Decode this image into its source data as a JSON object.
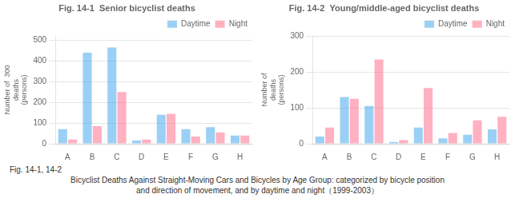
{
  "chart_data": [
    {
      "type": "bar",
      "title": "Fig. 14-1  Senior bicyclist deaths",
      "ylabel": "Number of  300\n    deaths\n  (persons)",
      "categories": [
        "A",
        "B",
        "C",
        "D",
        "E",
        "F",
        "G",
        "H"
      ],
      "series": [
        {
          "name": "Daytime",
          "values": [
            70,
            440,
            465,
            15,
            140,
            70,
            80,
            40
          ]
        },
        {
          "name": "Night",
          "values": [
            20,
            85,
            250,
            20,
            145,
            35,
            55,
            40
          ]
        }
      ],
      "ylim": [
        0,
        520
      ],
      "yticks": [
        0,
        100,
        200,
        300,
        400,
        500
      ],
      "grid": true,
      "legend": "upper right"
    },
    {
      "type": "bar",
      "title": "Fig. 14-2  Young/middle-aged bicyclist deaths",
      "ylabel": "Number of\n  deaths\n(persons)",
      "categories": [
        "A",
        "B",
        "C",
        "D",
        "E",
        "F",
        "G",
        "H"
      ],
      "series": [
        {
          "name": "Daytime",
          "values": [
            20,
            130,
            105,
            5,
            45,
            15,
            25,
            40
          ]
        },
        {
          "name": "Night",
          "values": [
            45,
            125,
            235,
            10,
            155,
            30,
            65,
            75
          ]
        }
      ],
      "ylim": [
        0,
        300
      ],
      "yticks": [
        0,
        100,
        200,
        300
      ],
      "grid": true,
      "legend": "upper right"
    }
  ],
  "caption": [
    "Fig. 14-1, 14-2",
    "Bicyclist Deaths Against Straight-Moving Cars and Bicycles by Age Group: categorized by bicycle position",
    "and direction of movement, and by daytime and night（1999-2003）"
  ]
}
